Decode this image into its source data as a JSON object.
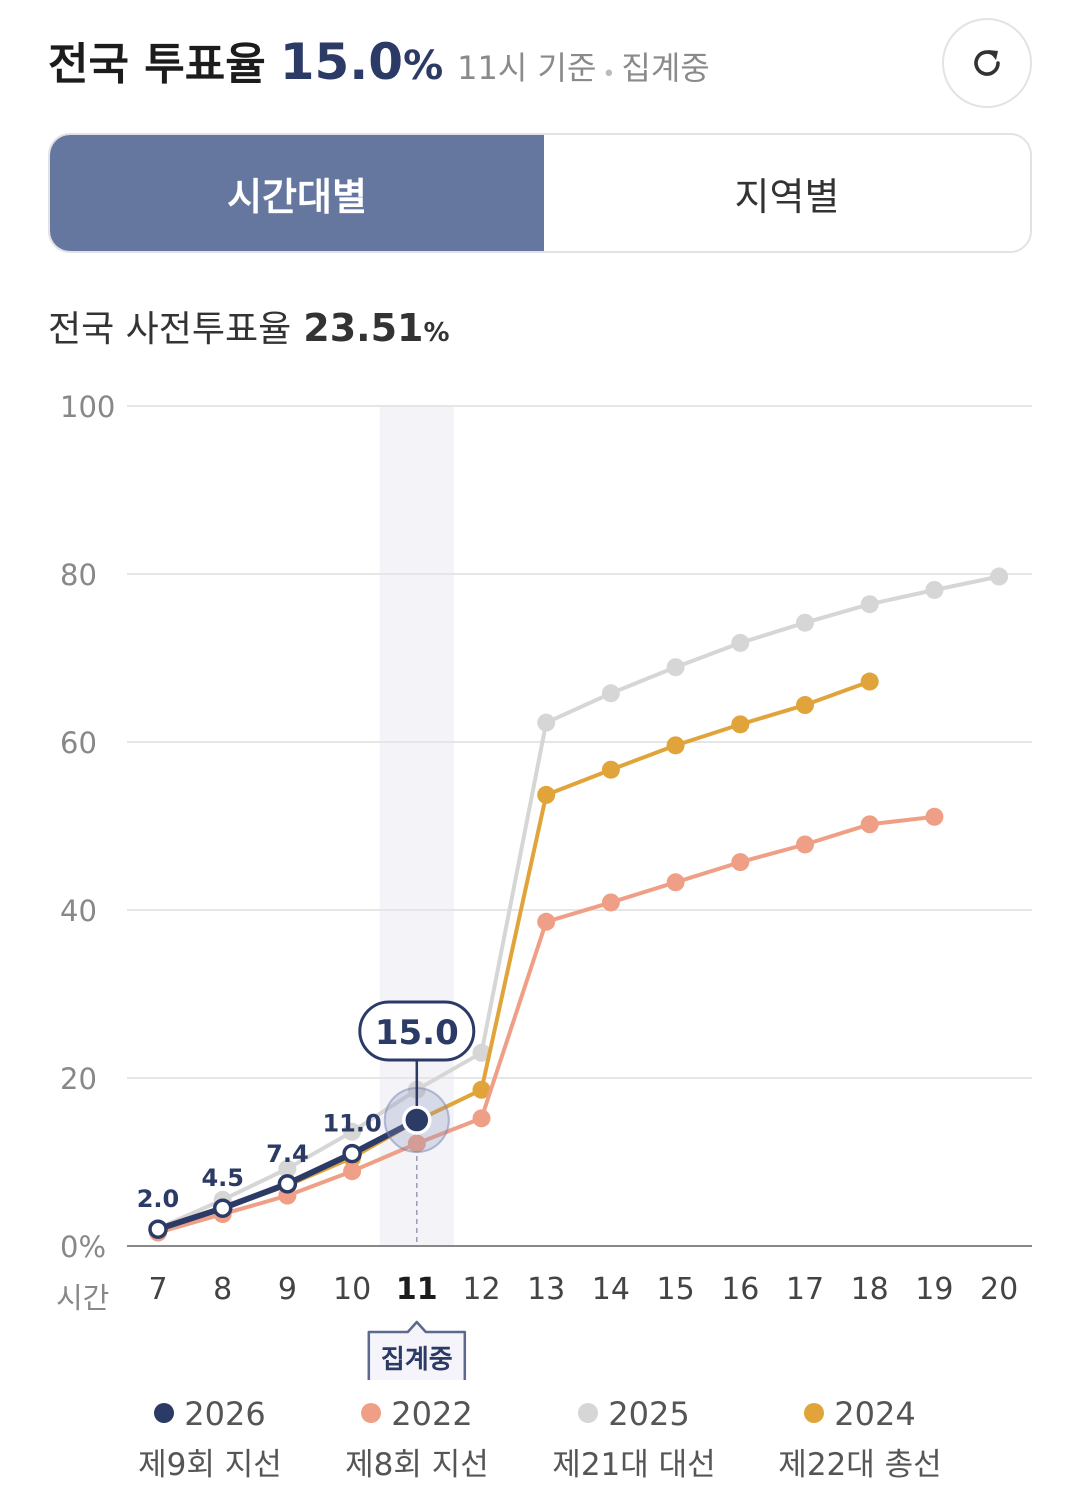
{
  "header": {
    "title": "전국 투표율",
    "rate": "15.0",
    "pct": "%",
    "time": "11시 기준",
    "separator": "•",
    "status": "집계중",
    "refresh_icon": "refresh-icon"
  },
  "tabs": [
    {
      "label": "시간대별",
      "active": true
    },
    {
      "label": "지역별",
      "active": false
    }
  ],
  "early_vote": {
    "label": "전국 사전투표율",
    "value": "23.51",
    "pct": "%"
  },
  "chart_data": {
    "type": "line",
    "xlabel": "시간",
    "x": [
      7,
      8,
      9,
      10,
      11,
      12,
      13,
      14,
      15,
      16,
      17,
      18,
      19,
      20
    ],
    "x_tick_labels": [
      "7",
      "8",
      "9",
      "10",
      "11",
      "12",
      "13",
      "14",
      "15",
      "16",
      "17",
      "18",
      "19",
      "20"
    ],
    "ylim": [
      0,
      100
    ],
    "y_ticks": [
      0,
      20,
      40,
      60,
      80,
      100
    ],
    "y_tick_labels": [
      "0%",
      "20",
      "40",
      "60",
      "80",
      "100"
    ],
    "grid": true,
    "highlight_x": 11,
    "highlight_badge": "집계중",
    "current_value_label": "15.0",
    "series": [
      {
        "name": "2025 제21대 대선",
        "year": "2025",
        "label": "제21대 대선",
        "color": "#d6d6d6",
        "values": [
          2.1,
          5.5,
          9.2,
          13.6,
          18.6,
          23.0,
          62.3,
          65.8,
          68.9,
          71.8,
          74.2,
          76.4,
          78.1,
          79.7
        ]
      },
      {
        "name": "2024 제22대 총선",
        "year": "2024",
        "label": "제22대 총선",
        "color": "#e0a43a",
        "values": [
          1.8,
          4.5,
          7.2,
          10.5,
          14.9,
          18.6,
          53.7,
          56.7,
          59.6,
          62.1,
          64.4,
          67.2,
          null,
          null
        ]
      },
      {
        "name": "2022 제8회 지선",
        "year": "2022",
        "label": "제8회 지선",
        "color": "#ef9f85",
        "values": [
          1.6,
          3.8,
          6.0,
          8.9,
          12.2,
          15.2,
          38.6,
          40.9,
          43.3,
          45.7,
          47.8,
          50.2,
          51.1,
          null
        ]
      },
      {
        "name": "2026 제9회 지선",
        "year": "2026",
        "label": "제9회 지선",
        "color": "#2c3a66",
        "values": [
          2.0,
          4.5,
          7.4,
          11.0,
          15.0,
          null,
          null,
          null,
          null,
          null,
          null,
          null,
          null,
          null
        ],
        "data_labels": [
          "2.0",
          "4.5",
          "7.4",
          "11.0"
        ]
      }
    ]
  },
  "legend": [
    {
      "year": "2026",
      "label": "제9회 지선",
      "color": "#2c3a66"
    },
    {
      "year": "2022",
      "label": "제8회 지선",
      "color": "#ef9f85"
    },
    {
      "year": "2025",
      "label": "제21대 대선",
      "color": "#d6d6d6"
    },
    {
      "year": "2024",
      "label": "제22대 총선",
      "color": "#e0a43a"
    }
  ]
}
